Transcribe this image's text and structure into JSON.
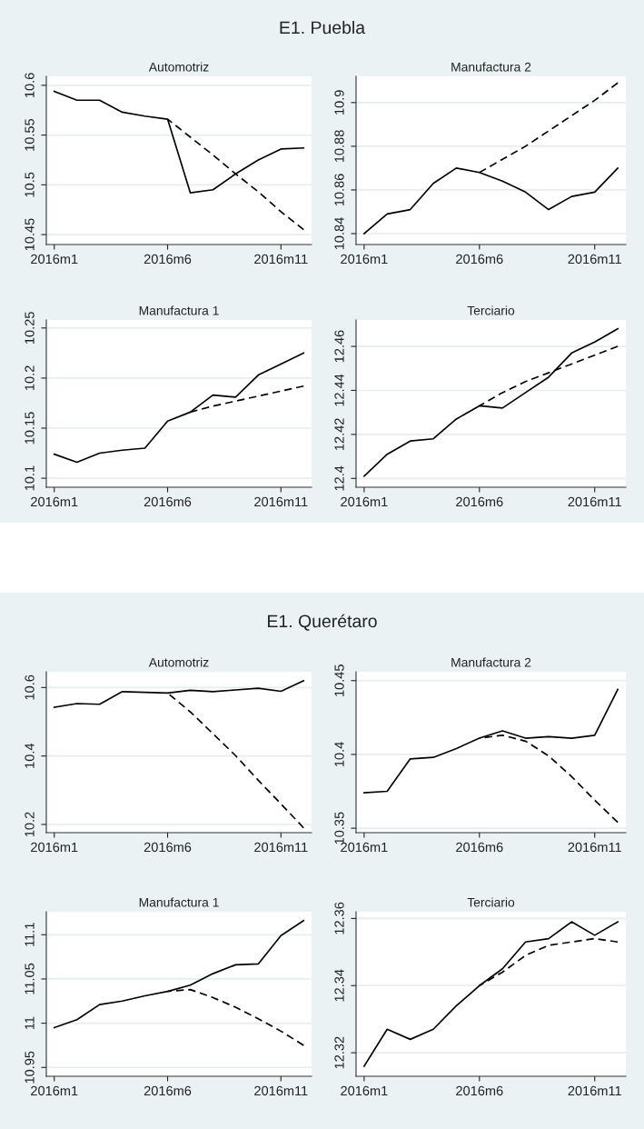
{
  "chart_data": [
    {
      "type": "other",
      "title": "E1. Puebla"
    },
    {
      "type": "line",
      "title": "Automotriz",
      "categories": [
        "2016m1",
        null,
        null,
        null,
        null,
        "2016m6",
        null,
        null,
        null,
        null,
        "2016m11",
        null
      ],
      "ylim": [
        10.44,
        10.609
      ],
      "yticks": [
        10.45,
        10.5,
        10.55,
        10.6
      ],
      "grid": "y",
      "series": [
        {
          "color": "#000000",
          "line_style": "solid",
          "values": [
            10.594,
            10.585,
            10.585,
            10.573,
            10.569,
            10.566,
            10.492,
            10.495,
            10.511,
            10.525,
            10.536,
            10.537
          ]
        },
        {
          "color": "#000000",
          "line_style": "dashed",
          "values": [
            null,
            null,
            null,
            null,
            null,
            10.566,
            10.548,
            10.53,
            10.511,
            10.493,
            10.473,
            10.455
          ]
        }
      ]
    },
    {
      "type": "line",
      "title": "Manufactura 2",
      "categories": [
        "2016m1",
        null,
        null,
        null,
        null,
        "2016m6",
        null,
        null,
        null,
        null,
        "2016m11",
        null
      ],
      "ylim": [
        10.835,
        10.912
      ],
      "yticks": [
        10.84,
        10.86,
        10.88,
        10.9
      ],
      "grid": "y",
      "series": [
        {
          "color": "#000000",
          "line_style": "solid",
          "values": [
            10.84,
            10.849,
            10.851,
            10.863,
            10.87,
            10.868,
            10.864,
            10.859,
            10.851,
            10.857,
            10.859,
            10.87
          ]
        },
        {
          "color": "#000000",
          "line_style": "dashed",
          "values": [
            null,
            null,
            null,
            null,
            null,
            10.868,
            10.874,
            10.88,
            10.887,
            10.894,
            10.901,
            10.909
          ]
        }
      ]
    },
    {
      "type": "line",
      "title": "Manufactura 1",
      "categories": [
        "2016m1",
        null,
        null,
        null,
        null,
        "2016m6",
        null,
        null,
        null,
        null,
        "2016m11",
        null
      ],
      "ylim": [
        10.091,
        10.258
      ],
      "yticks": [
        10.1,
        10.15,
        10.2,
        10.25
      ],
      "grid": "y",
      "series": [
        {
          "color": "#000000",
          "line_style": "solid",
          "values": [
            10.124,
            10.116,
            10.125,
            10.128,
            10.13,
            10.157,
            10.166,
            10.183,
            10.181,
            10.203,
            10.214,
            10.225
          ]
        },
        {
          "color": "#000000",
          "line_style": "dashed",
          "values": [
            null,
            null,
            null,
            null,
            null,
            null,
            10.166,
            10.172,
            10.177,
            10.182,
            10.187,
            10.192
          ]
        }
      ]
    },
    {
      "type": "line",
      "title": "Terciario",
      "categories": [
        "2016m1",
        null,
        null,
        null,
        null,
        "2016m6",
        null,
        null,
        null,
        null,
        "2016m11",
        null
      ],
      "ylim": [
        12.396,
        12.472
      ],
      "yticks": [
        12.4,
        12.42,
        12.44,
        12.46
      ],
      "grid": "y",
      "series": [
        {
          "color": "#000000",
          "line_style": "solid",
          "values": [
            12.401,
            12.411,
            12.417,
            12.418,
            12.427,
            12.433,
            12.432,
            12.439,
            12.446,
            12.457,
            12.462,
            12.468
          ]
        },
        {
          "color": "#000000",
          "line_style": "dashed",
          "values": [
            null,
            null,
            null,
            null,
            null,
            12.433,
            12.439,
            12.444,
            12.448,
            12.452,
            12.456,
            12.46
          ]
        }
      ]
    },
    {
      "type": "other",
      "title": "E1. Querétaro"
    },
    {
      "type": "line",
      "title": "Automotriz",
      "categories": [
        "2016m1",
        null,
        null,
        null,
        null,
        "2016m6",
        null,
        null,
        null,
        null,
        "2016m11",
        null
      ],
      "ylim": [
        10.176,
        10.646
      ],
      "yticks": [
        10.2,
        10.4,
        10.6
      ],
      "grid": "y",
      "series": [
        {
          "color": "#000000",
          "line_style": "solid",
          "values": [
            10.542,
            10.553,
            10.551,
            10.588,
            10.586,
            10.584,
            10.592,
            10.588,
            10.593,
            10.598,
            10.589,
            10.62
          ]
        },
        {
          "color": "#000000",
          "line_style": "dashed",
          "values": [
            null,
            null,
            null,
            null,
            null,
            10.584,
            10.529,
            10.465,
            10.401,
            10.329,
            10.26,
            10.19
          ]
        }
      ]
    },
    {
      "type": "line",
      "title": "Manufactura 2",
      "categories": [
        "2016m1",
        null,
        null,
        null,
        null,
        "2016m6",
        null,
        null,
        null,
        null,
        "2016m11",
        null
      ],
      "ylim": [
        10.347,
        10.456
      ],
      "yticks": [
        10.35,
        10.4,
        10.45
      ],
      "grid": "y",
      "series": [
        {
          "color": "#000000",
          "line_style": "solid",
          "values": [
            10.374,
            10.375,
            10.397,
            10.398,
            10.404,
            10.411,
            10.416,
            10.411,
            10.412,
            10.411,
            10.413,
            10.444
          ]
        },
        {
          "color": "#000000",
          "line_style": "dashed",
          "values": [
            null,
            null,
            null,
            null,
            null,
            10.411,
            10.413,
            10.409,
            10.399,
            10.385,
            10.369,
            10.354
          ]
        }
      ]
    },
    {
      "type": "line",
      "title": "Manufactura 1",
      "categories": [
        "2016m1",
        null,
        null,
        null,
        null,
        "2016m6",
        null,
        null,
        null,
        null,
        "2016m11",
        null
      ],
      "ylim": [
        10.94,
        11.126
      ],
      "yticks": [
        10.95,
        11,
        11.05,
        11.1
      ],
      "grid": "y",
      "series": [
        {
          "color": "#000000",
          "line_style": "solid",
          "values": [
            10.995,
            11.004,
            11.021,
            11.025,
            11.031,
            11.036,
            11.043,
            11.056,
            11.066,
            11.067,
            11.099,
            11.116
          ]
        },
        {
          "color": "#000000",
          "line_style": "dashed",
          "values": [
            null,
            null,
            null,
            null,
            null,
            11.036,
            11.038,
            11.029,
            11.018,
            11.005,
            10.991,
            10.975
          ]
        }
      ]
    },
    {
      "type": "line",
      "title": "Terciario",
      "categories": [
        "2016m1",
        null,
        null,
        null,
        null,
        "2016m6",
        null,
        null,
        null,
        null,
        "2016m11",
        null
      ],
      "ylim": [
        12.313,
        12.362
      ],
      "yticks": [
        12.32,
        12.34,
        12.36
      ],
      "grid": "y",
      "series": [
        {
          "color": "#000000",
          "line_style": "solid",
          "values": [
            12.316,
            12.327,
            12.324,
            12.327,
            12.334,
            12.34,
            12.345,
            12.353,
            12.354,
            12.359,
            12.355,
            12.359
          ]
        },
        {
          "color": "#000000",
          "line_style": "dashed",
          "values": [
            null,
            null,
            null,
            null,
            null,
            12.34,
            12.344,
            12.349,
            12.352,
            12.353,
            12.354,
            12.353
          ]
        }
      ]
    }
  ]
}
